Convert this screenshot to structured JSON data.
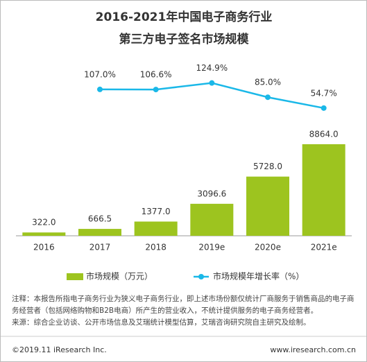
{
  "chart_data": {
    "type": "bar_line",
    "title": [
      "2016-2021年中国电子商务行业",
      "第三方电子签名市场规模"
    ],
    "categories": [
      "2016",
      "2017",
      "2018",
      "2019e",
      "2020e",
      "2021e"
    ],
    "ylim": [
      0,
      10000
    ],
    "y2lim": [
      0,
      200
    ],
    "series": [
      {
        "name": "市场规模（万元）",
        "color": "#9dc41f",
        "type": "bar",
        "values": [
          322,
          666.5,
          1377,
          3096.6,
          5728,
          8864
        ],
        "value_labels": [
          "322.0",
          "666.5",
          "1377.0",
          "3096.6",
          "5728.0",
          "8864.0"
        ]
      },
      {
        "name": "市场规模年增长率（%）",
        "color": "#1ab8e8",
        "type": "line",
        "axis": "y2",
        "values": [
          null,
          107.0,
          106.6,
          124.9,
          85.0,
          54.7
        ],
        "value_labels": [
          null,
          "107.0%",
          "106.6%",
          "124.9%",
          "85.0%",
          "54.7%"
        ]
      }
    ],
    "notes": [
      "注释：本报告所指电子商务行业为狭义电子商务行业，即上述市场份额仅统计厂商服务于销售商品的电子商务经营者（包括网络购物和B2B电商）所产生的营业收入，不统计提供服务的电子商务经营者。",
      "来源：综合企业访谈、公开市场信息及艾瑞统计模型估算，艾瑞咨询研究院自主研究及绘制。"
    ],
    "footer": {
      "left": "©2019.11 iResearch Inc.",
      "right": "www.iresearch.com.cn"
    }
  }
}
